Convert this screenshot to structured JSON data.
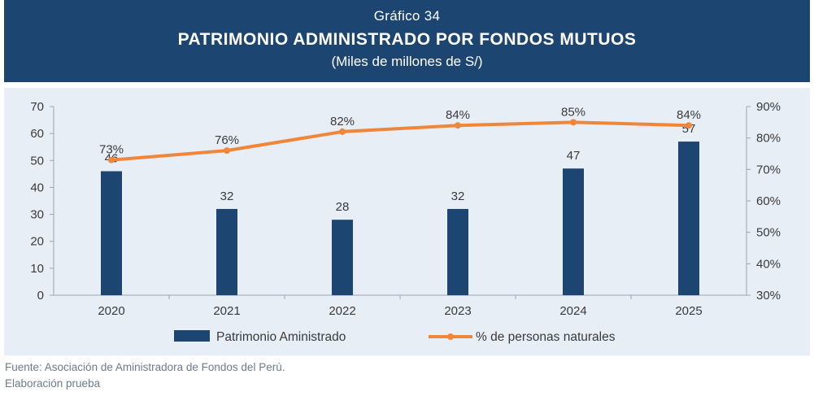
{
  "header": {
    "supertitle": "Gráfico 34",
    "title": "PATRIMONIO ADMINISTRADO POR FONDOS MUTUOS",
    "subtitle": "(Miles de millones de S/)"
  },
  "colors": {
    "header_bg": "#1d4571",
    "plot_bg": "#e8eef6",
    "bar": "#1d4571",
    "line": "#f0863a",
    "axis_text": "#3a3a3a"
  },
  "chart_data": {
    "type": "bar",
    "categories": [
      "2020",
      "2021",
      "2022",
      "2023",
      "2024",
      "2025"
    ],
    "series": [
      {
        "name": "Patrimonio Aministrado",
        "type": "bar",
        "axis": "left",
        "values": [
          46,
          32,
          28,
          32,
          47,
          57
        ],
        "labels": [
          "46",
          "32",
          "28",
          "32",
          "47",
          "57"
        ]
      },
      {
        "name": "% de personas naturales",
        "type": "line",
        "axis": "right",
        "values": [
          73,
          76,
          82,
          84,
          85,
          84
        ],
        "labels": [
          "73%",
          "76%",
          "82%",
          "84%",
          "85%",
          "84%"
        ]
      }
    ],
    "ylim_left": [
      0,
      70
    ],
    "yticks_left": [
      "0",
      "10",
      "20",
      "30",
      "40",
      "50",
      "60",
      "70"
    ],
    "ylim_right": [
      30,
      90
    ],
    "yticks_right": [
      "30%",
      "40%",
      "50%",
      "60%",
      "70%",
      "80%",
      "90%"
    ],
    "grid": false,
    "legend_position": "bottom"
  },
  "footer": {
    "source": "Fuente: Asociación de Aministradora de Fondos del Perú.",
    "note": "Elaboración prueba"
  }
}
